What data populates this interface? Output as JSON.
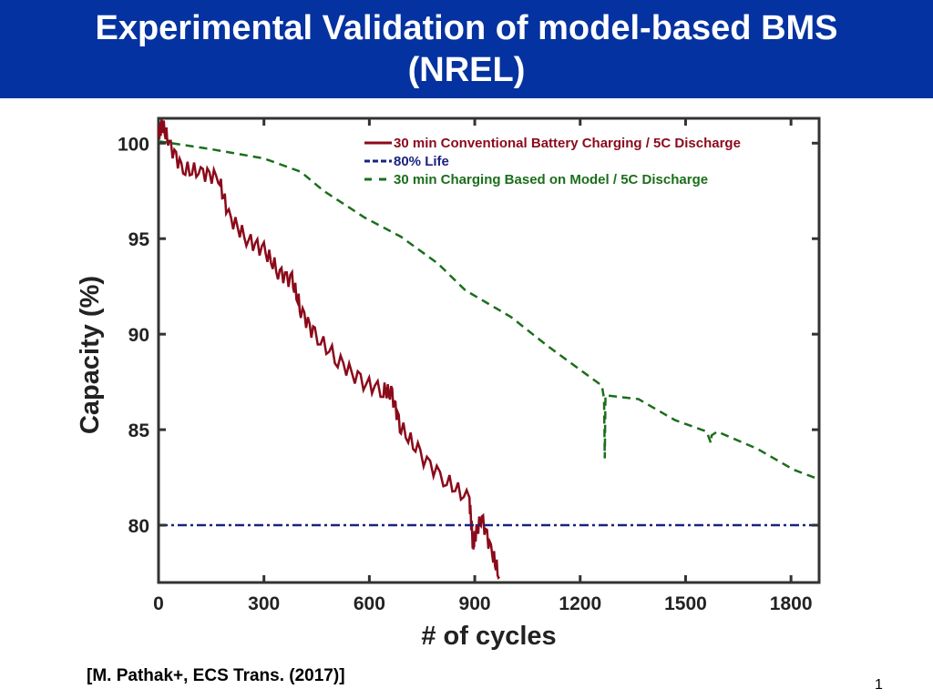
{
  "slide": {
    "title_line1": "Experimental Validation of model-based BMS",
    "title_line2": "(NREL)",
    "citation": "[M. Pathak+, ECS Trans. (2017)]",
    "page_number": "1",
    "title_bar_color": "#0432a0"
  },
  "chart_data": {
    "type": "line",
    "xlabel": "# of cycles",
    "ylabel": "Capacity (%)",
    "xlim": [
      0,
      1880
    ],
    "ylim": [
      77,
      101.3
    ],
    "xticks": [
      "0",
      "300",
      "600",
      "900",
      "1200",
      "1500",
      "1800"
    ],
    "yticks": [
      "80",
      "85",
      "90",
      "95",
      "100"
    ],
    "grid": false,
    "legend_placement": "top-right",
    "series": [
      {
        "name": "30 min Conventional Battery Charging / 5C Discharge",
        "color": "#8b0a1a",
        "style": "solid",
        "x": [
          0,
          10,
          30,
          70,
          120,
          170,
          200,
          250,
          300,
          340,
          380,
          405,
          445,
          510,
          575,
          640,
          665,
          690,
          745,
          820,
          885,
          895,
          900,
          920,
          950,
          970
        ],
        "y": [
          100.5,
          101.0,
          100.0,
          98.6,
          98.5,
          98.2,
          96.2,
          95.0,
          94.4,
          93.3,
          92.8,
          91.3,
          89.9,
          88.7,
          87.5,
          87.1,
          86.8,
          85.1,
          83.7,
          82.3,
          81.3,
          79.0,
          79.4,
          80.4,
          78.5,
          77.3
        ]
      },
      {
        "name": "80% Life",
        "color": "#1a237e",
        "style": "dash-dot",
        "x": [
          0,
          1880
        ],
        "y": [
          80,
          80
        ]
      },
      {
        "name": "30 min Charging Based on Model / 5C Discharge",
        "color": "#1b6e1b",
        "style": "dashed",
        "x": [
          0,
          145,
          300,
          405,
          470,
          587,
          690,
          795,
          873,
          1003,
          1106,
          1262,
          1268,
          1270,
          1272,
          1366,
          1470,
          1560,
          1572,
          1574,
          1590,
          1704,
          1808,
          1880
        ],
        "y": [
          100.1,
          99.7,
          99.2,
          98.5,
          97.5,
          96.1,
          95.1,
          93.7,
          92.3,
          90.9,
          89.4,
          87.3,
          86.6,
          83.5,
          86.8,
          86.6,
          85.5,
          84.9,
          84.3,
          84.7,
          84.9,
          84.0,
          82.9,
          82.4
        ]
      }
    ]
  }
}
